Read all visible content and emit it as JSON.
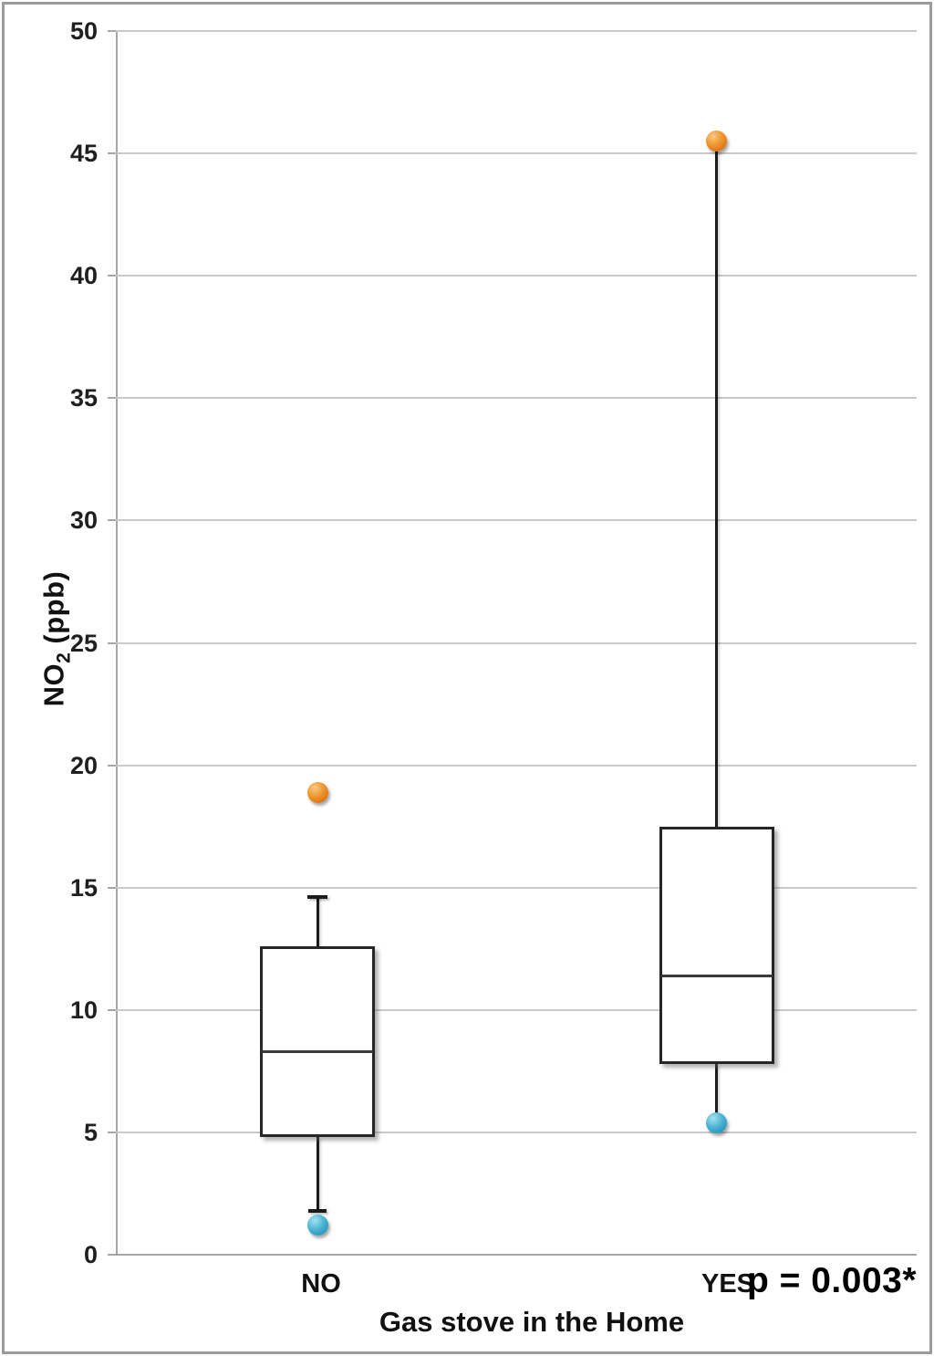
{
  "figure": {
    "border_color": "#9b9b9e",
    "background": "#ffffff"
  },
  "chart_data": {
    "type": "box",
    "title": "",
    "xlabel": "Gas stove in the Home",
    "ylabel": {
      "main": "NO",
      "sub": "2",
      "unit": " (ppb)"
    },
    "ylim": [
      0,
      50
    ],
    "yticks": [
      0,
      5,
      10,
      15,
      20,
      25,
      30,
      35,
      40,
      45,
      50
    ],
    "grid": true,
    "legend": false,
    "annotation": "p = 0.003*",
    "colors": {
      "high_point": "#ed8a24",
      "low_point": "#3aa8c9",
      "box_border": "#262626",
      "gridline": "#c9c9c9",
      "axis": "#a6a6a6"
    },
    "groups": [
      {
        "label": "NO",
        "center_pct": 25.2,
        "q1": 4.8,
        "median": 8.3,
        "q3": 12.6,
        "whisker_high": {
          "value": 14.6,
          "cap": true
        },
        "whisker_low": {
          "value": 1.8,
          "cap": true
        },
        "points": [
          {
            "name": "high-outlier",
            "value": 18.9,
            "color": "orange"
          },
          {
            "name": "low-outlier",
            "value": 1.2,
            "color": "blue"
          }
        ]
      },
      {
        "label": "YES",
        "center_pct": 75.0,
        "q1": 7.8,
        "median": 11.4,
        "q3": 17.5,
        "whisker_high": {
          "value": 45.5,
          "cap": false
        },
        "whisker_low": {
          "value": 5.5,
          "cap": false
        },
        "points": [
          {
            "name": "max-point",
            "value": 45.5,
            "color": "orange"
          },
          {
            "name": "min-point",
            "value": 5.4,
            "color": "blue"
          }
        ]
      }
    ]
  }
}
